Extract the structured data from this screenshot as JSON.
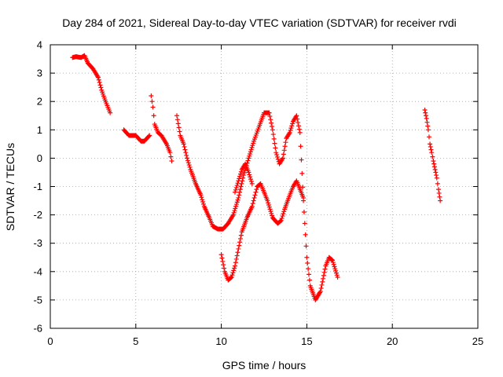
{
  "chart_data": {
    "type": "scatter",
    "title": "Day 284 of 2021, Sidereal Day-to-day VTEC variation (SDTVAR) for receiver rvdi",
    "xlabel": "GPS time / hours",
    "ylabel": "SDTVAR / TECUs",
    "xlim": [
      0,
      25
    ],
    "ylim": [
      -6,
      4
    ],
    "xticks": [
      0,
      5,
      10,
      15,
      20,
      25
    ],
    "yticks": [
      -6,
      -5,
      -4,
      -3,
      -2,
      -1,
      0,
      1,
      2,
      3,
      4
    ],
    "grid": true,
    "marker": "+",
    "color": "#ff0000",
    "tracks": [
      {
        "x": [
          1.3,
          1.5,
          1.8,
          2.0,
          2.2,
          2.5,
          2.8,
          3.0,
          3.2,
          3.5
        ],
        "y": [
          3.55,
          3.58,
          3.55,
          3.62,
          3.35,
          3.15,
          2.85,
          2.4,
          2.05,
          1.6
        ]
      },
      {
        "x": [
          4.3,
          4.6,
          5.0,
          5.3,
          5.5,
          5.8
        ],
        "y": [
          1.0,
          0.8,
          0.8,
          0.6,
          0.6,
          0.8
        ]
      },
      {
        "x": [
          5.9,
          6.0,
          6.1,
          6.3,
          6.5,
          6.8,
          7.0,
          7.1
        ],
        "y": [
          2.2,
          1.8,
          1.2,
          0.9,
          0.8,
          0.5,
          0.2,
          -0.1
        ]
      },
      {
        "x": [
          7.4,
          7.6,
          7.8,
          8.0,
          8.2,
          8.5,
          8.8,
          9.0,
          9.3,
          9.5,
          9.8,
          10.1,
          10.4,
          10.7,
          11.0,
          11.3,
          11.6,
          11.9,
          12.2,
          12.5,
          12.8,
          13.0,
          13.2,
          13.4,
          13.6,
          13.8,
          14.0,
          14.2,
          14.4,
          14.6,
          14.8,
          15.0,
          15.2,
          15.5,
          15.8,
          16.1,
          16.3,
          16.5,
          16.8
        ],
        "y": [
          1.5,
          0.8,
          0.5,
          0.0,
          -0.4,
          -0.9,
          -1.3,
          -1.7,
          -2.1,
          -2.4,
          -2.5,
          -2.5,
          -2.3,
          -2.0,
          -1.4,
          -0.6,
          0.0,
          0.6,
          1.1,
          1.6,
          1.6,
          1.0,
          0.2,
          -0.2,
          0.0,
          0.7,
          0.9,
          1.3,
          1.5,
          0.9,
          -1.5,
          -3.5,
          -4.5,
          -5.0,
          -4.7,
          -3.8,
          -3.5,
          -3.6,
          -4.2
        ]
      },
      {
        "x": [
          10.0,
          10.2,
          10.4,
          10.6,
          10.8,
          11.0,
          11.2,
          11.5,
          11.8,
          12.1,
          12.3,
          12.5,
          12.7,
          13.0,
          13.3,
          13.5,
          13.7,
          14.0,
          14.2,
          14.4,
          14.6,
          14.8
        ],
        "y": [
          -3.4,
          -4.0,
          -4.3,
          -4.2,
          -3.8,
          -3.2,
          -2.6,
          -2.1,
          -1.7,
          -1.0,
          -0.9,
          -1.2,
          -1.5,
          -2.1,
          -2.3,
          -2.2,
          -1.8,
          -1.3,
          -1.0,
          -0.8,
          -1.1,
          -1.4
        ]
      },
      {
        "x": [
          10.8,
          11.0,
          11.2,
          11.4,
          11.6,
          11.8
        ],
        "y": [
          -1.2,
          -0.8,
          -0.4,
          -0.2,
          -0.5,
          -0.9
        ]
      },
      {
        "x": [
          21.9,
          22.0,
          22.1,
          22.2,
          22.3,
          22.4,
          22.5,
          22.6,
          22.7,
          22.8
        ],
        "y": [
          1.7,
          1.4,
          1.0,
          0.5,
          0.2,
          -0.1,
          -0.4,
          -0.7,
          -1.1,
          -1.5
        ]
      }
    ]
  }
}
